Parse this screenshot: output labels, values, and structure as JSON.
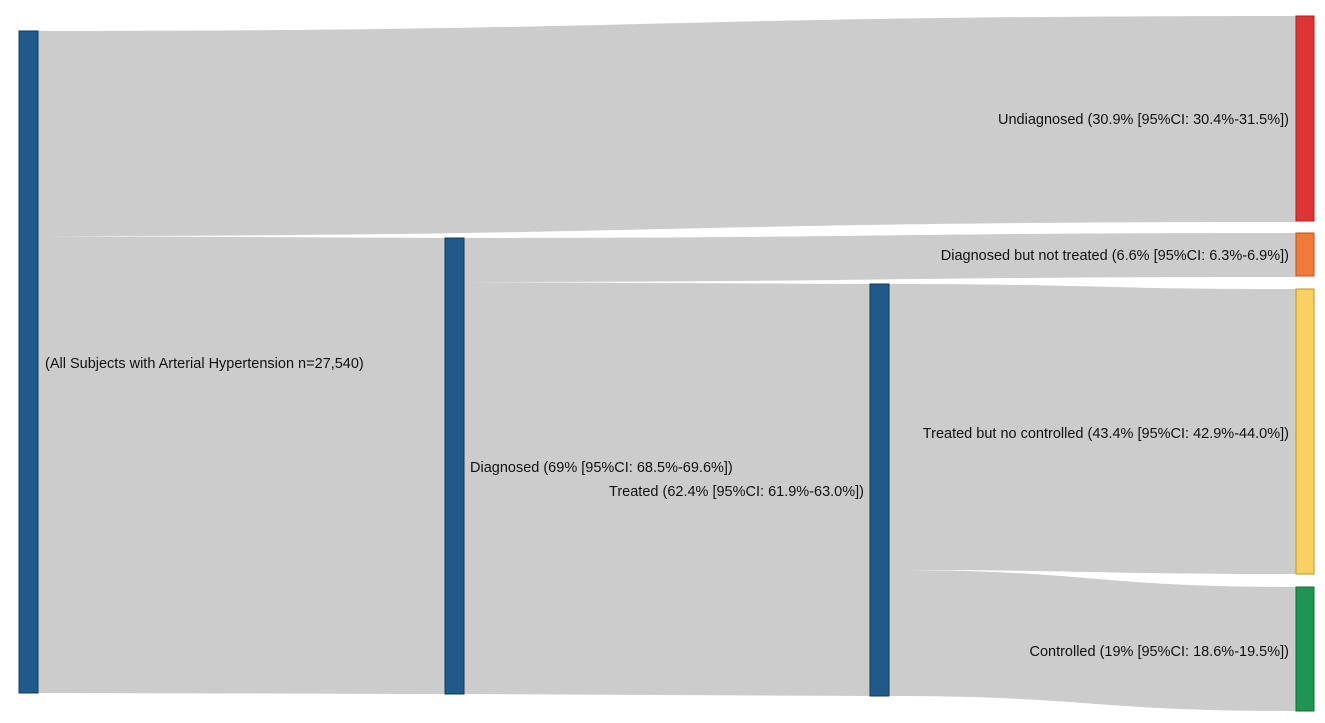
{
  "diagram": {
    "type": "sankey",
    "colors": {
      "flow": "#cccccc",
      "stage_node": "#1f5a8a",
      "undiagnosed": "#e03434",
      "diagnosed_not_treated": "#f07a3a",
      "treated_not_controlled": "#f9d162",
      "controlled": "#1e9652"
    },
    "nodes": {
      "all": {
        "label": "(All Subjects with Arterial Hypertension n=27,540)"
      },
      "diagnosed": {
        "label": "Diagnosed (69% [95%CI: 68.5%-69.6%])"
      },
      "treated": {
        "label": "Treated (62.4% [95%CI: 61.9%-63.0%])"
      },
      "undiagnosed": {
        "label": "Undiagnosed (30.9% [95%CI: 30.4%-31.5%])"
      },
      "diagnosed_not_treated": {
        "label": "Diagnosed but not treated (6.6% [95%CI: 6.3%-6.9%])"
      },
      "treated_not_controlled": {
        "label": "Treated but no controlled (43.4% [95%CI: 42.9%-44.0%])"
      },
      "controlled": {
        "label": "Controlled (19% [95%CI: 18.6%-19.5%])"
      }
    }
  }
}
